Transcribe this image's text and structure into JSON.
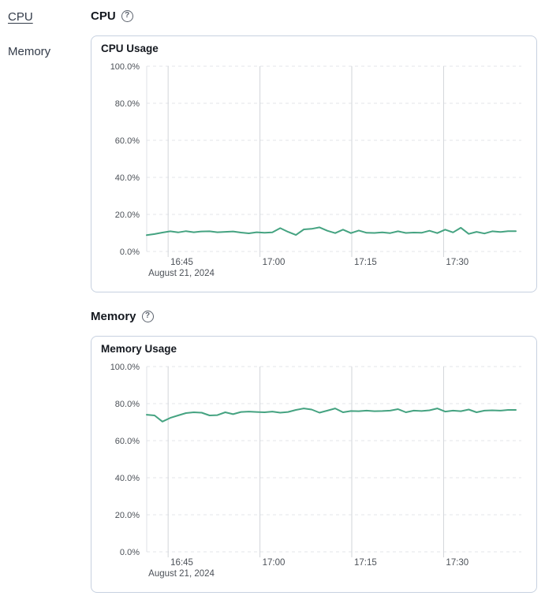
{
  "sidebar": {
    "items": [
      {
        "label": "CPU",
        "active": true
      },
      {
        "label": "Memory",
        "active": false
      }
    ]
  },
  "sections": [
    {
      "heading": "CPU",
      "help_icon": "question-circle-icon",
      "help_glyph": "?"
    },
    {
      "heading": "Memory",
      "help_icon": "question-circle-icon",
      "help_glyph": "?"
    }
  ],
  "colors": {
    "line_green": "#45a381",
    "card_border": "#c7d1e0",
    "v_gridline": "#d2d5da",
    "h_gridline_dashed": "#e3e5e9",
    "plot_border": "#dfe2e7",
    "axis_text": "#4c5158",
    "heading_text": "#14181f"
  },
  "chart_data": [
    {
      "type": "line",
      "title": "CPU Usage",
      "xlabel": "",
      "ylabel": "",
      "ylim": [
        0,
        100
      ],
      "grid": true,
      "legend": "none",
      "y_ticks": [
        {
          "value": 0,
          "label": "0.0%"
        },
        {
          "value": 20,
          "label": "20.0%"
        },
        {
          "value": 40,
          "label": "40.0%"
        },
        {
          "value": 60,
          "label": "60.0%"
        },
        {
          "value": 80,
          "label": "80.0%"
        },
        {
          "value": 100,
          "label": "100.0%"
        }
      ],
      "x_axis": {
        "domain_minutes": [
          1001.5,
          1062.7
        ],
        "ticks": [
          {
            "minute": 1005,
            "label": "16:45",
            "sublabel": "August 21, 2024"
          },
          {
            "minute": 1020,
            "label": "17:00"
          },
          {
            "minute": 1035,
            "label": "17:15"
          },
          {
            "minute": 1050,
            "label": "17:30"
          }
        ]
      },
      "series": [
        {
          "name": "CPU Usage",
          "color": "#45a381",
          "start_minute": 1001.5,
          "end_minute": 1061.8,
          "values": [
            8.8,
            9.4,
            10.2,
            10.9,
            10.3,
            11.0,
            10.4,
            10.8,
            10.9,
            10.4,
            10.6,
            10.8,
            10.2,
            9.8,
            10.4,
            10.1,
            10.3,
            12.6,
            10.6,
            8.9,
            11.9,
            12.2,
            13.0,
            11.2,
            9.9,
            11.8,
            9.9,
            11.3,
            10.1,
            10.0,
            10.3,
            9.9,
            10.9,
            10.0,
            10.2,
            10.1,
            11.2,
            9.9,
            11.8,
            10.3,
            12.8,
            9.5,
            10.6,
            9.7,
            10.9,
            10.5,
            11.0,
            11.0
          ]
        }
      ]
    },
    {
      "type": "line",
      "title": "Memory Usage",
      "xlabel": "",
      "ylabel": "",
      "ylim": [
        0,
        100
      ],
      "grid": true,
      "legend": "none",
      "y_ticks": [
        {
          "value": 0,
          "label": "0.0%"
        },
        {
          "value": 20,
          "label": "20.0%"
        },
        {
          "value": 40,
          "label": "40.0%"
        },
        {
          "value": 60,
          "label": "60.0%"
        },
        {
          "value": 80,
          "label": "80.0%"
        },
        {
          "value": 100,
          "label": "100.0%"
        }
      ],
      "x_axis": {
        "domain_minutes": [
          1001.5,
          1062.7
        ],
        "ticks": [
          {
            "minute": 1005,
            "label": "16:45",
            "sublabel": "August 21, 2024"
          },
          {
            "minute": 1020,
            "label": "17:00"
          },
          {
            "minute": 1035,
            "label": "17:15"
          },
          {
            "minute": 1050,
            "label": "17:30"
          }
        ]
      },
      "series": [
        {
          "name": "Memory Usage",
          "color": "#45a381",
          "start_minute": 1001.5,
          "end_minute": 1061.8,
          "values": [
            74.0,
            73.6,
            70.3,
            72.3,
            73.6,
            74.9,
            75.3,
            75.1,
            73.6,
            73.8,
            75.3,
            74.3,
            75.5,
            75.7,
            75.5,
            75.3,
            75.7,
            75.1,
            75.5,
            76.6,
            77.4,
            76.8,
            75.1,
            76.2,
            77.4,
            75.3,
            76.0,
            75.9,
            76.2,
            75.9,
            76.0,
            76.2,
            77.0,
            75.3,
            76.2,
            76.0,
            76.4,
            77.4,
            75.7,
            76.2,
            75.9,
            76.8,
            75.3,
            76.2,
            76.4,
            76.2,
            76.6,
            76.6
          ]
        }
      ]
    }
  ]
}
